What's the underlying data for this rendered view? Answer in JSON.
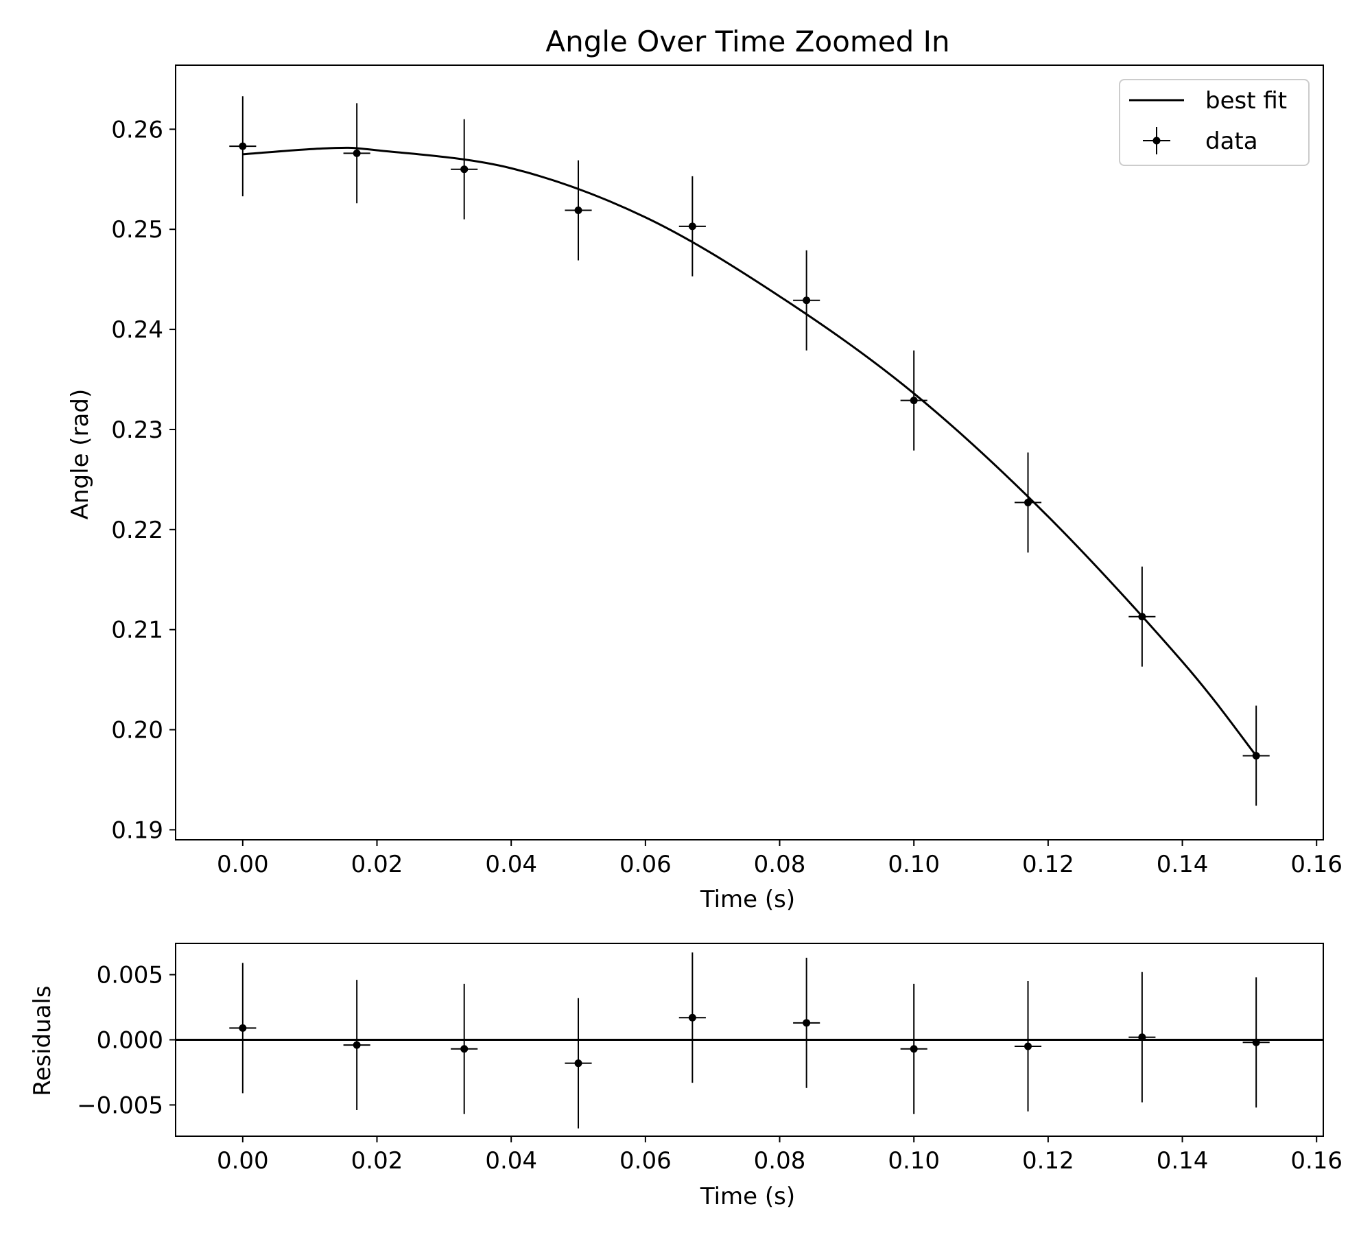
{
  "chart_data": [
    {
      "type": "scatter",
      "title": "Angle Over Time Zoomed In",
      "xlabel": "Time (s)",
      "ylabel": "Angle (rad)",
      "xlim": [
        -0.01,
        0.161
      ],
      "ylim": [
        0.189,
        0.2664
      ],
      "xticks": [
        0.0,
        0.02,
        0.04,
        0.06,
        0.08,
        0.1,
        0.12,
        0.14,
        0.16
      ],
      "xtick_labels": [
        "0.00",
        "0.02",
        "0.04",
        "0.06",
        "0.08",
        "0.10",
        "0.12",
        "0.14",
        "0.16"
      ],
      "yticks": [
        0.19,
        0.2,
        0.21,
        0.22,
        0.23,
        0.24,
        0.25,
        0.26
      ],
      "ytick_labels": [
        "0.19",
        "0.20",
        "0.21",
        "0.22",
        "0.23",
        "0.24",
        "0.25",
        "0.26"
      ],
      "legend": {
        "position": "top-right",
        "entries": [
          "best fit",
          "data"
        ]
      },
      "grid": false,
      "series": [
        {
          "name": "data",
          "kind": "errorbar",
          "x": [
            0.0,
            0.017,
            0.033,
            0.05,
            0.067,
            0.084,
            0.1,
            0.117,
            0.134,
            0.151
          ],
          "y": [
            0.2583,
            0.2576,
            0.256,
            0.2519,
            0.2503,
            0.2429,
            0.2329,
            0.2227,
            0.2113,
            0.1974
          ],
          "yerr": 0.005,
          "xerr": 0.002
        },
        {
          "name": "best fit",
          "kind": "line",
          "x": [
            0.0,
            0.0126,
            0.02,
            0.04,
            0.06,
            0.08,
            0.1,
            0.12,
            0.14,
            0.151
          ],
          "y": [
            0.2575,
            0.2581,
            0.2579,
            0.2561,
            0.2512,
            0.2433,
            0.2336,
            0.2213,
            0.2068,
            0.1974
          ]
        }
      ]
    },
    {
      "type": "scatter",
      "title": "",
      "xlabel": "Time (s)",
      "ylabel": "Residuals",
      "xlim": [
        -0.01,
        0.161
      ],
      "ylim": [
        -0.0074,
        0.0074
      ],
      "xticks": [
        0.0,
        0.02,
        0.04,
        0.06,
        0.08,
        0.1,
        0.12,
        0.14,
        0.16
      ],
      "xtick_labels": [
        "0.00",
        "0.02",
        "0.04",
        "0.06",
        "0.08",
        "0.10",
        "0.12",
        "0.14",
        "0.16"
      ],
      "yticks": [
        -0.005,
        0.0,
        0.005
      ],
      "ytick_labels": [
        "−0.005",
        "0.000",
        "0.005"
      ],
      "grid": false,
      "reference_line": 0.0,
      "series": [
        {
          "kind": "errorbar",
          "x": [
            0.0,
            0.017,
            0.033,
            0.05,
            0.067,
            0.084,
            0.1,
            0.117,
            0.134,
            0.151
          ],
          "y": [
            0.0009,
            -0.0004,
            -0.0007,
            -0.0018,
            0.0017,
            0.0013,
            -0.0007,
            -0.0005,
            0.0002,
            -0.0002
          ],
          "yerr": 0.005,
          "xerr": 0.002
        }
      ]
    }
  ]
}
